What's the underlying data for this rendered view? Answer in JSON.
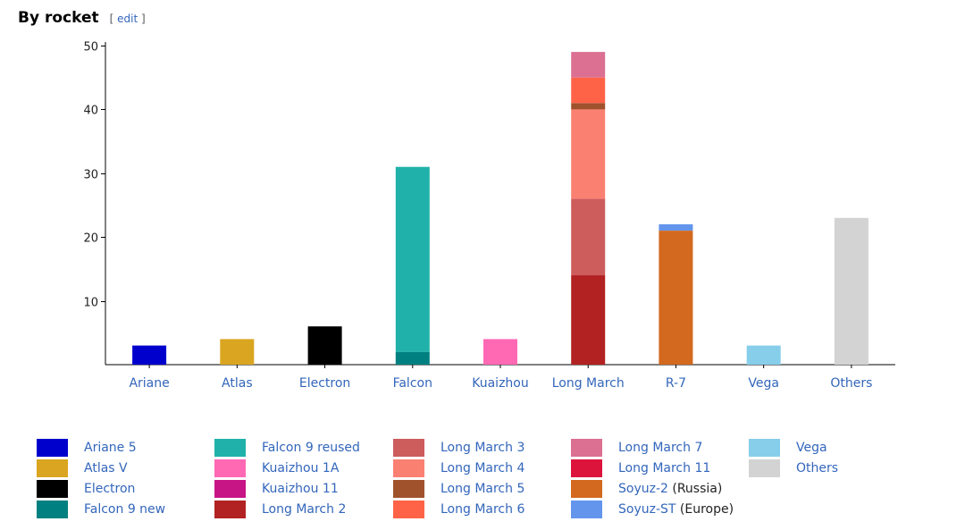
{
  "heading": {
    "title": "By rocket",
    "edit_open": "[",
    "edit_label": "edit",
    "edit_close": "]"
  },
  "chart_data": {
    "type": "bar",
    "stacked": true,
    "title": "",
    "xlabel": "",
    "ylabel": "",
    "ylim": [
      0,
      50
    ],
    "yticks": [
      10,
      20,
      30,
      40,
      50
    ],
    "categories": [
      "Ariane",
      "Atlas",
      "Electron",
      "Falcon",
      "Kuaizhou",
      "Long March",
      "R-7",
      "Vega",
      "Others"
    ],
    "series": [
      {
        "name": "Ariane 5",
        "color": "#0000cd",
        "values": [
          3,
          0,
          0,
          0,
          0,
          0,
          0,
          0,
          0
        ]
      },
      {
        "name": "Atlas V",
        "color": "#daa520",
        "values": [
          0,
          4,
          0,
          0,
          0,
          0,
          0,
          0,
          0
        ]
      },
      {
        "name": "Electron",
        "color": "#000000",
        "values": [
          0,
          0,
          6,
          0,
          0,
          0,
          0,
          0,
          0
        ]
      },
      {
        "name": "Falcon 9 new",
        "color": "#008080",
        "values": [
          0,
          0,
          0,
          2,
          0,
          0,
          0,
          0,
          0
        ]
      },
      {
        "name": "Falcon 9 reused",
        "color": "#20b2aa",
        "values": [
          0,
          0,
          0,
          29,
          0,
          0,
          0,
          0,
          0
        ]
      },
      {
        "name": "Kuaizhou 1A",
        "color": "#ff69b4",
        "values": [
          0,
          0,
          0,
          0,
          4,
          0,
          0,
          0,
          0
        ]
      },
      {
        "name": "Kuaizhou 11",
        "color": "#c71585",
        "values": [
          0,
          0,
          0,
          0,
          0,
          0,
          0,
          0,
          0
        ]
      },
      {
        "name": "Long March 2",
        "color": "#b22222",
        "values": [
          0,
          0,
          0,
          0,
          0,
          14,
          0,
          0,
          0
        ]
      },
      {
        "name": "Long March 3",
        "color": "#cd5c5c",
        "values": [
          0,
          0,
          0,
          0,
          0,
          12,
          0,
          0,
          0
        ]
      },
      {
        "name": "Long March 4",
        "color": "#fa8072",
        "values": [
          0,
          0,
          0,
          0,
          0,
          14,
          0,
          0,
          0
        ]
      },
      {
        "name": "Long March 5",
        "color": "#a0522d",
        "values": [
          0,
          0,
          0,
          0,
          0,
          1,
          0,
          0,
          0
        ]
      },
      {
        "name": "Long March 6",
        "color": "#ff6347",
        "values": [
          0,
          0,
          0,
          0,
          0,
          4,
          0,
          0,
          0
        ]
      },
      {
        "name": "Long March 7",
        "color": "#db7093",
        "values": [
          0,
          0,
          0,
          0,
          0,
          4,
          0,
          0,
          0
        ]
      },
      {
        "name": "Long March 11",
        "color": "#dc143c",
        "values": [
          0,
          0,
          0,
          0,
          0,
          0,
          0,
          0,
          0
        ]
      },
      {
        "name": "Soyuz-2",
        "suffix": " (Russia)",
        "color": "#d2691e",
        "values": [
          0,
          0,
          0,
          0,
          0,
          0,
          21,
          0,
          0
        ]
      },
      {
        "name": "Soyuz-ST",
        "suffix": " (Europe)",
        "color": "#6495ed",
        "values": [
          0,
          0,
          0,
          0,
          0,
          0,
          1,
          0,
          0
        ]
      },
      {
        "name": "Vega",
        "color": "#87ceeb",
        "values": [
          0,
          0,
          0,
          0,
          0,
          0,
          0,
          3,
          0
        ]
      },
      {
        "name": "Others",
        "color": "#d3d3d3",
        "values": [
          0,
          0,
          0,
          0,
          0,
          0,
          0,
          0,
          23
        ]
      }
    ],
    "legend_placement": "bottom",
    "grid": false
  }
}
